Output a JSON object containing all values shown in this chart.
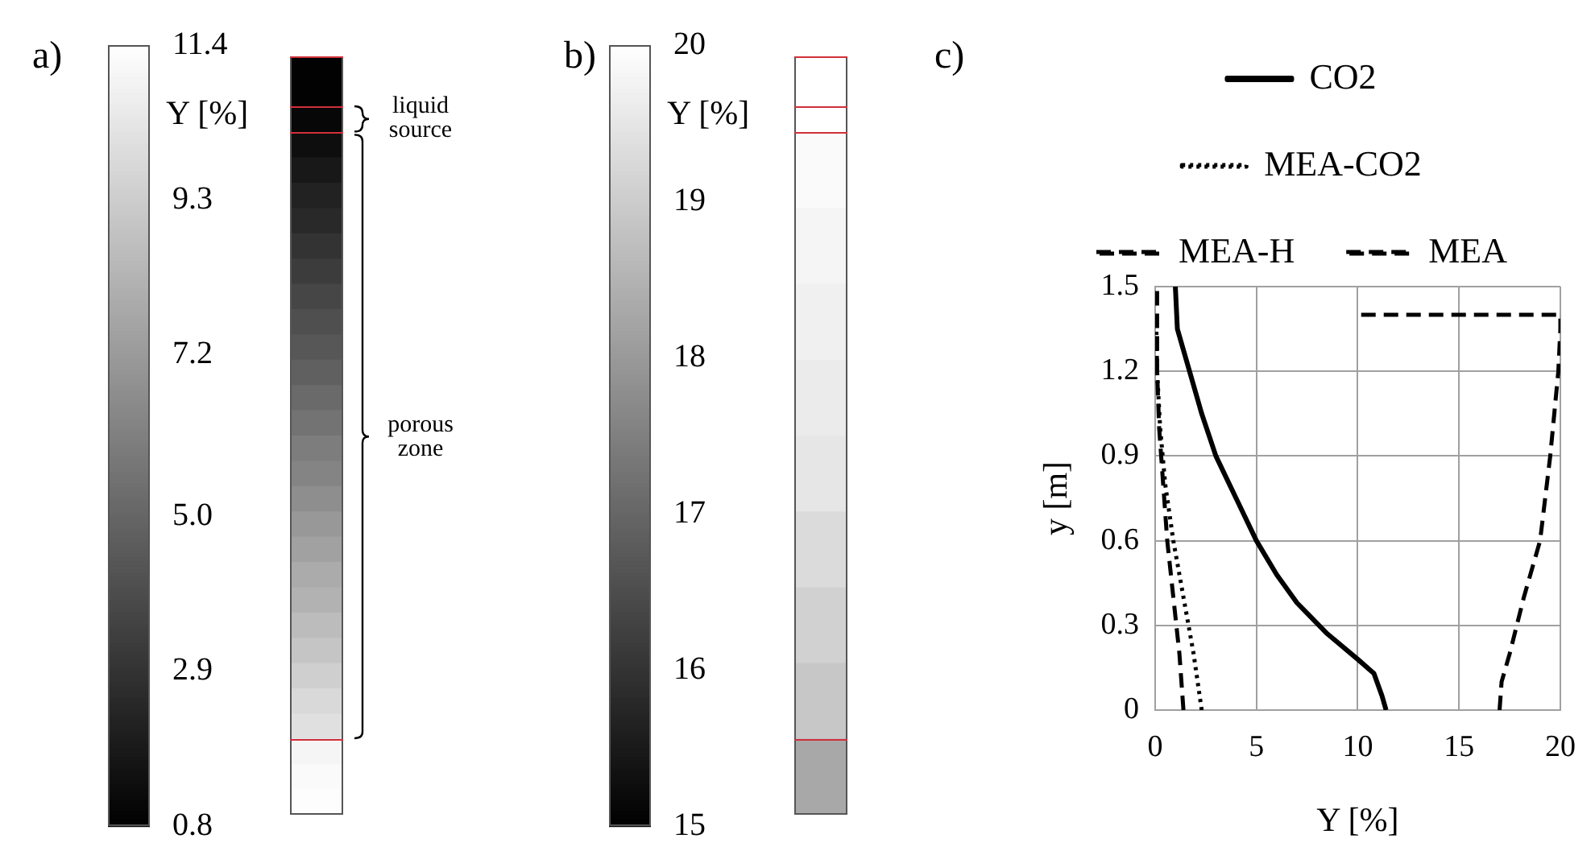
{
  "chart_data": [
    {
      "type": "heatmap",
      "title": "a)",
      "clabel": "Y [%]",
      "categories": [
        null
      ],
      "y_categories": [
        null,
        null,
        null,
        null,
        null,
        null,
        null,
        null,
        null,
        null,
        null,
        null,
        null,
        null,
        null,
        null,
        null,
        null,
        null,
        null,
        null,
        null,
        null,
        null,
        null,
        null,
        null,
        null,
        null,
        null
      ],
      "cells": [
        [
          0.9
        ],
        [
          0.9
        ],
        [
          1.1
        ],
        [
          1.4
        ],
        [
          1.8
        ],
        [
          2.2
        ],
        [
          2.5
        ],
        [
          2.9
        ],
        [
          3.3
        ],
        [
          3.7
        ],
        [
          4.1
        ],
        [
          4.4
        ],
        [
          4.8
        ],
        [
          5.2
        ],
        [
          5.6
        ],
        [
          6.0
        ],
        [
          6.3
        ],
        [
          6.7
        ],
        [
          7.1
        ],
        [
          7.5
        ],
        [
          7.9
        ],
        [
          8.2
        ],
        [
          8.6
        ],
        [
          9.0
        ],
        [
          9.4
        ],
        [
          9.8
        ],
        [
          10.1
        ],
        [
          11.0
        ],
        [
          11.2
        ],
        [
          11.3
        ]
      ],
      "clim": [
        0.8,
        11.4
      ],
      "cticks": [
        {
          "value": 0.8,
          "label": "0.8"
        },
        {
          "value": 2.9,
          "label": "2.9"
        },
        {
          "value": 5,
          "label": "5.0"
        },
        {
          "value": 7.2,
          "label": "7.2"
        },
        {
          "value": 9.3,
          "label": "9.3"
        },
        {
          "value": 11.4,
          "label": "11.4"
        }
      ],
      "annotations": [
        "liquid source",
        "porous zone"
      ]
    },
    {
      "type": "heatmap",
      "title": "b)",
      "clabel": "Y [%]",
      "categories": [
        null
      ],
      "y_categories": [
        null,
        null,
        null,
        null,
        null,
        null,
        null,
        null,
        null,
        null
      ],
      "cells": [
        [
          20
        ],
        [
          19.9
        ],
        [
          19.8
        ],
        [
          19.7
        ],
        [
          19.6
        ],
        [
          19.5
        ],
        [
          19.3
        ],
        [
          19.1
        ],
        [
          18.9
        ],
        [
          18.3
        ]
      ],
      "clim": [
        15,
        20
      ],
      "cticks": [
        15,
        16,
        17,
        18,
        19,
        20
      ]
    },
    {
      "type": "line",
      "title": "c)",
      "xlabel": "Y [%]",
      "ylabel": "y [m]",
      "xlim": [
        0,
        20
      ],
      "xticks": [
        0,
        5,
        10,
        15,
        20
      ],
      "ylim": [
        0,
        1.5
      ],
      "yticks": [
        0,
        0.3,
        0.6,
        0.9,
        1.2,
        1.5
      ],
      "grid": true,
      "legend": "top",
      "marker": "none",
      "series": [
        {
          "name": "CO2",
          "color": "#000000",
          "line_style": "solid",
          "x": [
            11.4,
            11.2,
            10.8,
            10,
            8.5,
            7,
            6,
            5,
            4,
            3,
            2.3,
            1.7,
            1.1,
            1.0
          ],
          "values": [
            0,
            0.05,
            0.13,
            0.18,
            0.27,
            0.38,
            0.48,
            0.6,
            0.75,
            0.9,
            1.05,
            1.2,
            1.35,
            1.5
          ]
        },
        {
          "name": "MEA-CO2",
          "color": "#000000",
          "line_style": "dotted",
          "x": [
            2.3,
            1.9,
            1.4,
            0.9,
            0.5,
            0.25,
            0.1,
            0.05
          ],
          "values": [
            0,
            0.2,
            0.4,
            0.6,
            0.8,
            1.0,
            1.2,
            1.4
          ]
        },
        {
          "name": "MEA-H",
          "color": "#000000",
          "line_style": "dashed",
          "x": [
            1.4,
            1.2,
            0.9,
            0.6,
            0.4,
            0.2,
            0.1,
            0.1
          ],
          "values": [
            0,
            0.2,
            0.4,
            0.6,
            0.8,
            1.0,
            1.2,
            1.5
          ]
        },
        {
          "name": "MEA",
          "color": "#000000",
          "line_style": "dashed",
          "x": [
            17,
            17.1,
            17.5,
            18.2,
            19,
            19.5,
            19.9,
            20,
            20,
            10
          ],
          "values": [
            0,
            0.1,
            0.2,
            0.4,
            0.6,
            0.9,
            1.2,
            1.35,
            1.4,
            1.4
          ]
        }
      ]
    }
  ]
}
